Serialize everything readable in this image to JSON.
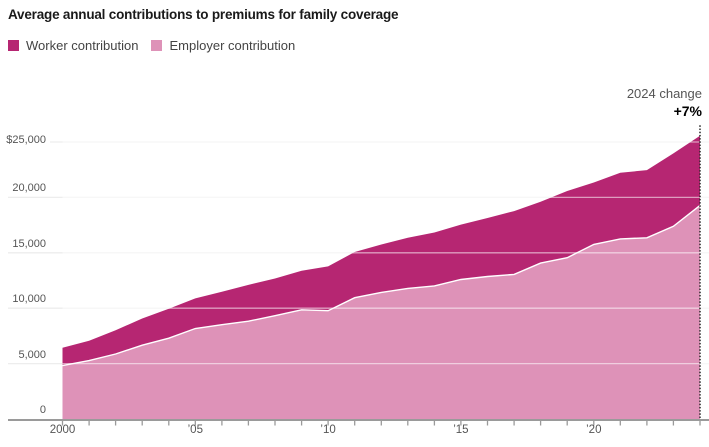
{
  "header": {
    "title": "Average annual contributions to premiums for family coverage"
  },
  "chart_data": {
    "type": "area",
    "stacked": true,
    "title": "Average annual contributions to premiums for family coverage",
    "x": [
      2000,
      2001,
      2002,
      2003,
      2004,
      2005,
      2006,
      2007,
      2008,
      2009,
      2010,
      2011,
      2012,
      2013,
      2014,
      2015,
      2016,
      2017,
      2018,
      2019,
      2020,
      2021,
      2022,
      2023,
      2024
    ],
    "series": [
      {
        "name": "Worker contribution",
        "color": "#b62672",
        "values": [
          1619,
          1787,
          2137,
          2412,
          2661,
          2713,
          2973,
          3281,
          3354,
          3515,
          3997,
          4129,
          4316,
          4565,
          4823,
          4955,
          5277,
          5714,
          5547,
          6015,
          5588,
          5969,
          6106,
          6575,
          6296
        ]
      },
      {
        "name": "Employer contribution",
        "color": "#de92b8",
        "values": [
          4819,
          5269,
          5866,
          6657,
          7289,
          8167,
          8508,
          8824,
          9325,
          9860,
          9773,
          10944,
          11429,
          11786,
          12011,
          12591,
          12865,
          13049,
          14069,
          14561,
          15754,
          16253,
          16357,
          17393,
          19276
        ]
      }
    ],
    "ylim": [
      0,
      25000
    ],
    "yticks": [
      0,
      5000,
      10000,
      15000,
      20000,
      25000
    ],
    "ytick_labels": [
      "0",
      "5,000",
      "10,000",
      "15,000",
      "20,000",
      "$25,000"
    ],
    "xticks": [
      2000,
      2005,
      2010,
      2015,
      2020
    ],
    "xtick_labels": [
      "2000",
      "’05",
      "’10",
      "’15",
      "’20"
    ],
    "minor_xticks_every_year": true,
    "grid": true,
    "legend_position": "top-left",
    "annotation": {
      "label": "2024 change",
      "value": "+7%",
      "x": 2024
    },
    "colors": {
      "grid": "#ededed",
      "axis": "#9a9a9a",
      "separator_stroke": "#ffffff",
      "dotted_marker": "#2b2b2b"
    }
  }
}
